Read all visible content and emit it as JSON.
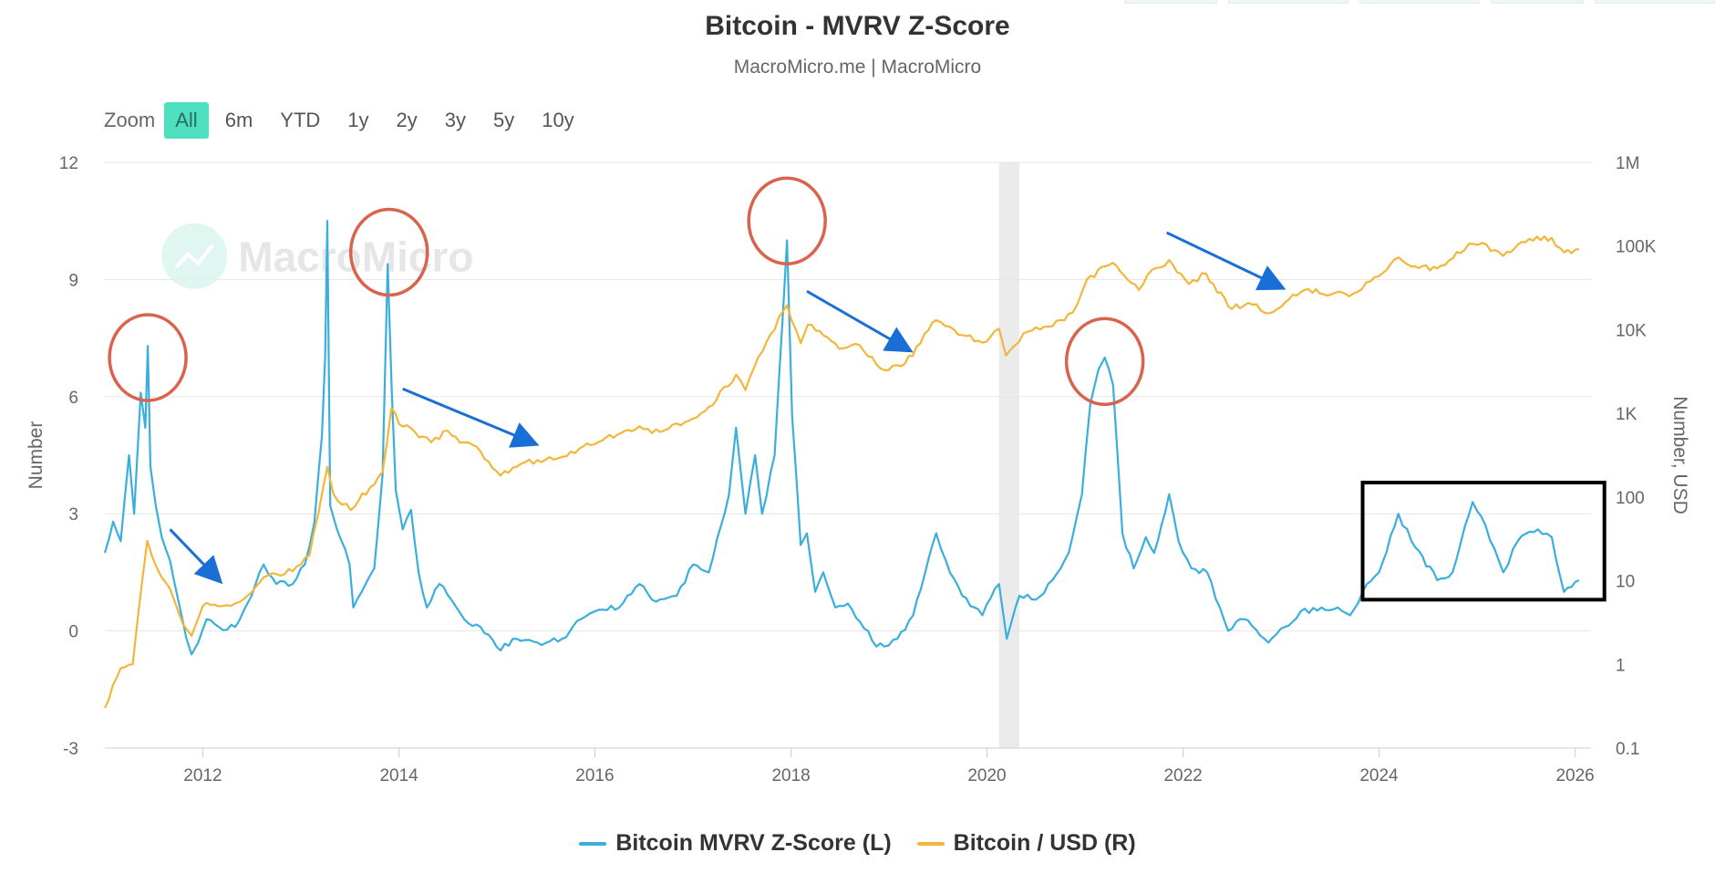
{
  "chart_data": {
    "type": "line",
    "title": "Bitcoin - MVRV Z-Score",
    "subtitle": "MacroMicro.me | MacroMicro",
    "watermark": "MacroMicro",
    "ylabel_left": "Number",
    "ylabel_right": "Number, USD",
    "y_left_range": [
      -3,
      12
    ],
    "y_left_ticks": [
      "-3",
      "0",
      "3",
      "6",
      "9",
      "12"
    ],
    "y_right_scale": "log",
    "y_right_range": [
      0.1,
      1000000
    ],
    "y_right_ticks": [
      "0.1",
      "1",
      "10",
      "100",
      "1K",
      "10K",
      "100K",
      "1M"
    ],
    "x_range": [
      "2011-01-01",
      "2026-03-01"
    ],
    "x_ticks": [
      "2012",
      "2014",
      "2016",
      "2018",
      "2020",
      "2022",
      "2024",
      "2026"
    ],
    "grid": "horizontal",
    "legend_position": "bottom-center",
    "shaded_period": [
      "2020-02-15",
      "2020-05-01"
    ],
    "series": [
      {
        "name": "Bitcoin MVRV Z-Score (L)",
        "axis": "left",
        "color": "#3aaedc",
        "points": [
          [
            "2011-01-01",
            2.0
          ],
          [
            "2011-02-01",
            2.8
          ],
          [
            "2011-03-01",
            2.3
          ],
          [
            "2011-04-01",
            4.5
          ],
          [
            "2011-04-20",
            3.0
          ],
          [
            "2011-05-15",
            6.1
          ],
          [
            "2011-06-01",
            5.2
          ],
          [
            "2011-06-10",
            7.3
          ],
          [
            "2011-06-20",
            4.2
          ],
          [
            "2011-07-10",
            3.2
          ],
          [
            "2011-08-01",
            2.4
          ],
          [
            "2011-09-01",
            1.8
          ],
          [
            "2011-10-01",
            0.8
          ],
          [
            "2011-11-01",
            -0.2
          ],
          [
            "2011-11-20",
            -0.6
          ],
          [
            "2011-12-15",
            -0.3
          ],
          [
            "2012-01-15",
            0.3
          ],
          [
            "2012-03-01",
            0.1
          ],
          [
            "2012-05-01",
            0.1
          ],
          [
            "2012-06-15",
            0.7
          ],
          [
            "2012-08-15",
            1.7
          ],
          [
            "2012-10-01",
            1.2
          ],
          [
            "2012-12-01",
            1.2
          ],
          [
            "2013-01-15",
            1.7
          ],
          [
            "2013-02-20",
            2.8
          ],
          [
            "2013-03-20",
            5.0
          ],
          [
            "2013-04-01",
            7.0
          ],
          [
            "2013-04-09",
            10.5
          ],
          [
            "2013-04-20",
            3.2
          ],
          [
            "2013-05-15",
            2.6
          ],
          [
            "2013-07-01",
            1.7
          ],
          [
            "2013-07-15",
            0.6
          ],
          [
            "2013-08-15",
            1.0
          ],
          [
            "2013-10-01",
            1.6
          ],
          [
            "2013-11-01",
            4.0
          ],
          [
            "2013-11-20",
            9.4
          ],
          [
            "2013-12-05",
            6.2
          ],
          [
            "2013-12-20",
            3.6
          ],
          [
            "2014-01-15",
            2.6
          ],
          [
            "2014-02-15",
            3.1
          ],
          [
            "2014-03-15",
            1.5
          ],
          [
            "2014-04-15",
            0.6
          ],
          [
            "2014-06-01",
            1.2
          ],
          [
            "2014-07-15",
            0.8
          ],
          [
            "2014-09-01",
            0.3
          ],
          [
            "2014-11-01",
            0.1
          ],
          [
            "2015-01-15",
            -0.5
          ],
          [
            "2015-03-01",
            -0.2
          ],
          [
            "2015-06-01",
            -0.3
          ],
          [
            "2015-09-01",
            -0.2
          ],
          [
            "2015-11-10",
            0.3
          ],
          [
            "2016-01-01",
            0.5
          ],
          [
            "2016-04-01",
            0.6
          ],
          [
            "2016-06-15",
            1.2
          ],
          [
            "2016-08-01",
            0.8
          ],
          [
            "2016-11-01",
            0.9
          ],
          [
            "2017-01-01",
            1.7
          ],
          [
            "2017-03-01",
            1.5
          ],
          [
            "2017-05-15",
            3.5
          ],
          [
            "2017-06-10",
            5.2
          ],
          [
            "2017-07-15",
            3.0
          ],
          [
            "2017-08-20",
            4.5
          ],
          [
            "2017-09-15",
            3.0
          ],
          [
            "2017-11-01",
            4.5
          ],
          [
            "2017-12-17",
            10.0
          ],
          [
            "2018-01-05",
            5.5
          ],
          [
            "2018-02-06",
            2.2
          ],
          [
            "2018-03-01",
            2.5
          ],
          [
            "2018-04-01",
            1.0
          ],
          [
            "2018-05-01",
            1.5
          ],
          [
            "2018-06-15",
            0.6
          ],
          [
            "2018-08-01",
            0.7
          ],
          [
            "2018-11-15",
            -0.4
          ],
          [
            "2018-12-15",
            -0.4
          ],
          [
            "2019-02-01",
            -0.2
          ],
          [
            "2019-04-01",
            0.4
          ],
          [
            "2019-06-26",
            2.5
          ],
          [
            "2019-08-01",
            1.8
          ],
          [
            "2019-10-01",
            0.9
          ],
          [
            "2019-12-15",
            0.4
          ],
          [
            "2020-02-15",
            1.2
          ],
          [
            "2020-03-15",
            -0.2
          ],
          [
            "2020-05-01",
            0.9
          ],
          [
            "2020-07-01",
            0.8
          ],
          [
            "2020-09-01",
            1.3
          ],
          [
            "2020-11-01",
            2.0
          ],
          [
            "2020-12-20",
            3.5
          ],
          [
            "2021-01-20",
            5.8
          ],
          [
            "2021-02-20",
            6.7
          ],
          [
            "2021-03-15",
            7.0
          ],
          [
            "2021-04-15",
            6.3
          ],
          [
            "2021-05-20",
            2.5
          ],
          [
            "2021-07-01",
            1.6
          ],
          [
            "2021-08-15",
            2.4
          ],
          [
            "2021-09-15",
            2.0
          ],
          [
            "2021-11-10",
            3.5
          ],
          [
            "2021-12-15",
            2.3
          ],
          [
            "2022-02-01",
            1.6
          ],
          [
            "2022-04-01",
            1.5
          ],
          [
            "2022-06-18",
            0.0
          ],
          [
            "2022-08-15",
            0.3
          ],
          [
            "2022-11-15",
            -0.3
          ],
          [
            "2023-01-15",
            0.1
          ],
          [
            "2023-03-15",
            0.5
          ],
          [
            "2023-06-01",
            0.6
          ],
          [
            "2023-08-01",
            0.6
          ],
          [
            "2023-09-15",
            0.4
          ],
          [
            "2023-11-01",
            1.0
          ],
          [
            "2024-01-01",
            1.5
          ],
          [
            "2024-03-13",
            3.0
          ],
          [
            "2024-05-01",
            2.3
          ],
          [
            "2024-08-05",
            1.3
          ],
          [
            "2024-10-01",
            1.5
          ],
          [
            "2024-12-15",
            3.3
          ],
          [
            "2025-02-01",
            2.7
          ],
          [
            "2025-04-08",
            1.5
          ],
          [
            "2025-06-01",
            2.3
          ],
          [
            "2025-08-15",
            2.6
          ],
          [
            "2025-10-06",
            2.4
          ],
          [
            "2025-11-20",
            1.0
          ],
          [
            "2026-01-15",
            1.3
          ]
        ]
      },
      {
        "name": "Bitcoin / USD (R)",
        "axis": "right",
        "color": "#f3b63a",
        "points": [
          [
            "2011-01-01",
            0.3
          ],
          [
            "2011-03-01",
            0.9
          ],
          [
            "2011-04-15",
            1.0
          ],
          [
            "2011-05-01",
            3
          ],
          [
            "2011-06-08",
            30
          ],
          [
            "2011-07-15",
            14
          ],
          [
            "2011-09-01",
            8
          ],
          [
            "2011-10-20",
            3
          ],
          [
            "2011-11-20",
            2.2
          ],
          [
            "2012-01-01",
            5
          ],
          [
            "2012-03-15",
            5
          ],
          [
            "2012-06-01",
            6
          ],
          [
            "2012-08-15",
            11
          ],
          [
            "2012-10-01",
            12
          ],
          [
            "2012-12-01",
            13
          ],
          [
            "2013-02-01",
            20
          ],
          [
            "2013-04-09",
            230
          ],
          [
            "2013-05-01",
            110
          ],
          [
            "2013-07-05",
            70
          ],
          [
            "2013-09-15",
            130
          ],
          [
            "2013-11-01",
            200
          ],
          [
            "2013-12-04",
            1150
          ],
          [
            "2014-01-01",
            750
          ],
          [
            "2014-03-01",
            600
          ],
          [
            "2014-05-01",
            450
          ],
          [
            "2014-07-01",
            620
          ],
          [
            "2014-09-01",
            450
          ],
          [
            "2014-11-01",
            350
          ],
          [
            "2015-01-14",
            180
          ],
          [
            "2015-04-01",
            250
          ],
          [
            "2015-08-01",
            280
          ],
          [
            "2015-11-04",
            380
          ],
          [
            "2016-01-01",
            430
          ],
          [
            "2016-06-15",
            700
          ],
          [
            "2016-08-01",
            580
          ],
          [
            "2016-12-01",
            780
          ],
          [
            "2017-03-01",
            1200
          ],
          [
            "2017-06-10",
            2900
          ],
          [
            "2017-07-15",
            1900
          ],
          [
            "2017-09-01",
            4700
          ],
          [
            "2017-12-17",
            19500
          ],
          [
            "2018-02-06",
            6900
          ],
          [
            "2018-03-05",
            11500
          ],
          [
            "2018-06-29",
            5900
          ],
          [
            "2018-09-15",
            6500
          ],
          [
            "2018-12-15",
            3300
          ],
          [
            "2019-03-01",
            3900
          ],
          [
            "2019-06-26",
            13000
          ],
          [
            "2019-09-01",
            10000
          ],
          [
            "2019-12-15",
            7000
          ],
          [
            "2020-02-15",
            10300
          ],
          [
            "2020-03-12",
            4900
          ],
          [
            "2020-06-01",
            9500
          ],
          [
            "2020-09-01",
            11000
          ],
          [
            "2020-11-15",
            16000
          ],
          [
            "2021-01-08",
            40000
          ],
          [
            "2021-04-14",
            63000
          ],
          [
            "2021-07-20",
            29800
          ],
          [
            "2021-09-07",
            52000
          ],
          [
            "2021-11-10",
            68000
          ],
          [
            "2022-01-22",
            35000
          ],
          [
            "2022-03-28",
            47000
          ],
          [
            "2022-06-18",
            19000
          ],
          [
            "2022-09-15",
            20000
          ],
          [
            "2022-11-21",
            15800
          ],
          [
            "2023-01-30",
            23000
          ],
          [
            "2023-04-14",
            30500
          ],
          [
            "2023-09-11",
            25000
          ],
          [
            "2023-12-01",
            38000
          ],
          [
            "2024-03-14",
            73000
          ],
          [
            "2024-05-01",
            57000
          ],
          [
            "2024-08-05",
            54000
          ],
          [
            "2024-11-15",
            90000
          ],
          [
            "2024-12-17",
            106000
          ],
          [
            "2025-01-20",
            109000
          ],
          [
            "2025-04-07",
            76000
          ],
          [
            "2025-07-14",
            122000
          ],
          [
            "2025-10-06",
            125000
          ],
          [
            "2025-11-21",
            84000
          ],
          [
            "2026-01-15",
            92000
          ]
        ]
      }
    ],
    "annotations": [
      {
        "shape": "circle",
        "color": "#d9634c",
        "at": [
          "2011-06-10",
          7.0
        ]
      },
      {
        "shape": "circle",
        "color": "#d9634c",
        "at": [
          "2013-11-25",
          9.7
        ]
      },
      {
        "shape": "circle",
        "color": "#d9634c",
        "at": [
          "2017-12-17",
          10.5
        ]
      },
      {
        "shape": "circle",
        "color": "#d9634c",
        "at": [
          "2021-03-15",
          6.9
        ]
      },
      {
        "shape": "arrow",
        "color": "#1a6fd6",
        "from": [
          "2011-09-01",
          2.6
        ],
        "to": [
          "2012-03-01",
          1.3
        ]
      },
      {
        "shape": "arrow",
        "color": "#1a6fd6",
        "from": [
          "2014-01-15",
          6.2
        ],
        "to": [
          "2015-05-20",
          4.8
        ]
      },
      {
        "shape": "arrow",
        "color": "#1a6fd6",
        "from": [
          "2018-03-01",
          8.7
        ],
        "to": [
          "2019-03-15",
          7.2
        ]
      },
      {
        "shape": "arrow",
        "color": "#1a6fd6",
        "from": [
          "2021-11-01",
          10.2
        ],
        "to": [
          "2023-01-01",
          8.8
        ]
      },
      {
        "shape": "rectangle",
        "color": "#000000",
        "from": [
          "2023-11-01",
          3.8
        ],
        "to": [
          "2026-04-20",
          0.8
        ]
      }
    ]
  },
  "zoom": {
    "label": "Zoom",
    "buttons": [
      "All",
      "6m",
      "YTD",
      "1y",
      "2y",
      "3y",
      "5y",
      "10y"
    ],
    "active": "All",
    "active_color": "#4fe0c0"
  }
}
